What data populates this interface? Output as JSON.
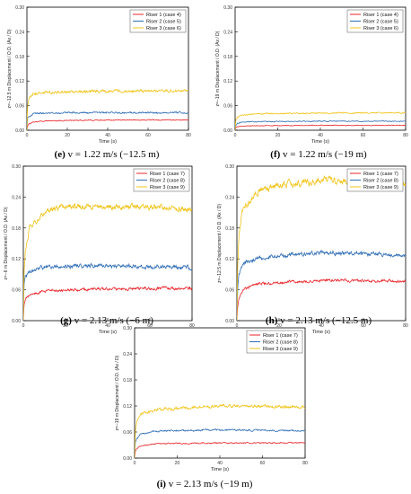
{
  "colors": {
    "riser1": "#e8252a",
    "riser2": "#2f6db5",
    "riser3": "#f0c419",
    "axis": "#000000"
  },
  "panels": [
    {
      "id": "e",
      "caption_letter": "(e)",
      "caption_rest": " v = 1.22 m/s (−12.5 m)",
      "chart_data": {
        "type": "line",
        "xlabel": "Time (s)",
        "ylabel": "z=−12.5 m Displacement / O.D. (Ax / D)",
        "xlim": [
          0,
          80
        ],
        "ylim": [
          0,
          0.3
        ],
        "xticks": [
          "0",
          "20",
          "40",
          "60",
          "80"
        ],
        "yticks": [
          "0.00",
          "0.06",
          "0.12",
          "0.18",
          "0.24",
          "0.30"
        ],
        "legend_position": "top-right",
        "series": [
          {
            "name": "Riser 1 (case 4)",
            "color_key": "riser1",
            "steady": 0.025,
            "noise": 0.0008,
            "x": [
              0,
              0.3,
              1,
              3,
              10,
              40,
              80
            ],
            "y": [
              0,
              0.01,
              0.015,
              0.02,
              0.023,
              0.025,
              0.025
            ]
          },
          {
            "name": "Riser 2 (case 5)",
            "color_key": "riser2",
            "steady": 0.043,
            "noise": 0.0015,
            "x": [
              0,
              0.3,
              1,
              3,
              10,
              40,
              80
            ],
            "y": [
              0,
              0.03,
              0.034,
              0.04,
              0.042,
              0.043,
              0.043
            ]
          },
          {
            "name": "Riser 3 (case 6)",
            "color_key": "riser3",
            "steady": 0.095,
            "noise": 0.0025,
            "x": [
              0,
              0.3,
              1,
              3,
              10,
              40,
              80
            ],
            "y": [
              0,
              0.06,
              0.075,
              0.088,
              0.092,
              0.095,
              0.097
            ]
          }
        ]
      }
    },
    {
      "id": "f",
      "caption_letter": "(f)",
      "caption_rest": " v = 1.22 m/s (−19 m)",
      "chart_data": {
        "type": "line",
        "xlabel": "Time (s)",
        "ylabel": "z=−19 m Displacement / O.D. (Ax / D)",
        "xlim": [
          0,
          80
        ],
        "ylim": [
          0,
          0.3
        ],
        "xticks": [
          "0",
          "20",
          "40",
          "60",
          "80"
        ],
        "yticks": [
          "0.00",
          "0.06",
          "0.12",
          "0.18",
          "0.24",
          "0.30"
        ],
        "legend_position": "top-right",
        "series": [
          {
            "name": "Riser 1 (case 4)",
            "color_key": "riser1",
            "steady": 0.012,
            "noise": 0.0006,
            "x": [
              0,
              0.3,
              1,
              3,
              10,
              40,
              80
            ],
            "y": [
              0,
              0.006,
              0.008,
              0.01,
              0.011,
              0.012,
              0.012
            ]
          },
          {
            "name": "Riser 2 (case 5)",
            "color_key": "riser2",
            "steady": 0.022,
            "noise": 0.0008,
            "x": [
              0,
              0.3,
              1,
              3,
              10,
              40,
              80
            ],
            "y": [
              0,
              0.012,
              0.016,
              0.02,
              0.021,
              0.022,
              0.022
            ]
          },
          {
            "name": "Riser 3 (case 6)",
            "color_key": "riser3",
            "steady": 0.042,
            "noise": 0.0012,
            "x": [
              0,
              0.3,
              1,
              3,
              10,
              40,
              80
            ],
            "y": [
              0,
              0.025,
              0.032,
              0.037,
              0.04,
              0.042,
              0.043
            ]
          }
        ]
      }
    },
    {
      "id": "g",
      "caption_letter": "(g)",
      "caption_rest": " v = 2.13 m/s (−6 m)",
      "chart_data": {
        "type": "line",
        "xlabel": "Time (s)",
        "ylabel": "z=−6 m Displacement / O.D. (Ax / D)",
        "xlim": [
          0,
          80
        ],
        "ylim": [
          0,
          0.3
        ],
        "xticks": [
          "0",
          "20",
          "40",
          "60",
          "80"
        ],
        "yticks": [
          "0.00",
          "0.06",
          "0.12",
          "0.18",
          "0.24",
          "0.30"
        ],
        "legend_position": "top-right",
        "series": [
          {
            "name": "Riser 1 (case 7)",
            "color_key": "riser1",
            "steady": 0.062,
            "noise": 0.002,
            "x": [
              0,
              0.3,
              1,
              3,
              10,
              40,
              80
            ],
            "y": [
              0,
              0.03,
              0.04,
              0.05,
              0.058,
              0.062,
              0.063
            ]
          },
          {
            "name": "Riser 2 (case 8)",
            "color_key": "riser2",
            "steady": 0.105,
            "noise": 0.003,
            "x": [
              0,
              0.3,
              1,
              3,
              10,
              40,
              80
            ],
            "y": [
              0,
              0.07,
              0.085,
              0.095,
              0.105,
              0.107,
              0.103
            ]
          },
          {
            "name": "Riser 3 (case 9)",
            "color_key": "riser3",
            "steady": 0.22,
            "noise": 0.004,
            "x": [
              0,
              0.3,
              1,
              3,
              10,
              20,
              40,
              60,
              80
            ],
            "y": [
              0,
              0.09,
              0.14,
              0.18,
              0.21,
              0.222,
              0.222,
              0.22,
              0.217
            ]
          }
        ]
      }
    },
    {
      "id": "h",
      "caption_letter": "(h)",
      "caption_rest": " v = 2.13 m/s (−12.5 m)",
      "chart_data": {
        "type": "line",
        "xlabel": "Time (s)",
        "ylabel": "z=−12.5 m Displacement / O.D. (Ax / D)",
        "xlim": [
          0,
          80
        ],
        "ylim": [
          0,
          0.3
        ],
        "xticks": [
          "0",
          "20",
          "40",
          "60",
          "80"
        ],
        "yticks": [
          "0.00",
          "0.06",
          "0.12",
          "0.18",
          "0.24",
          "0.30"
        ],
        "legend_position": "top-right",
        "series": [
          {
            "name": "Riser 1 (case 7)",
            "color_key": "riser1",
            "steady": 0.077,
            "noise": 0.002,
            "x": [
              0,
              0.3,
              1,
              3,
              10,
              40,
              80
            ],
            "y": [
              0,
              0.025,
              0.045,
              0.06,
              0.072,
              0.078,
              0.077
            ]
          },
          {
            "name": "Riser 2 (case 8)",
            "color_key": "riser2",
            "steady": 0.128,
            "noise": 0.003,
            "x": [
              0,
              0.3,
              1,
              3,
              10,
              40,
              80
            ],
            "y": [
              0,
              0.06,
              0.09,
              0.11,
              0.122,
              0.132,
              0.127
            ]
          },
          {
            "name": "Riser 3 (case 9)",
            "color_key": "riser3",
            "steady": 0.27,
            "noise": 0.005,
            "x": [
              0,
              0.3,
              1,
              3,
              10,
              20,
              40,
              60,
              80
            ],
            "y": [
              0,
              0.1,
              0.17,
              0.22,
              0.25,
              0.265,
              0.272,
              0.27,
              0.265
            ]
          }
        ]
      }
    },
    {
      "id": "i",
      "caption_letter": "(i)",
      "caption_rest": " v = 2.13 m/s (−19 m)",
      "chart_data": {
        "type": "line",
        "xlabel": "Time (s)",
        "ylabel": "z=−19 m Displacement / O.D. (Ax / D)",
        "xlim": [
          0,
          80
        ],
        "ylim": [
          0,
          0.3
        ],
        "xticks": [
          "0",
          "20",
          "40",
          "60",
          "80"
        ],
        "yticks": [
          "0.00",
          "0.06",
          "0.12",
          "0.18",
          "0.24",
          "0.30"
        ],
        "legend_position": "top-right",
        "series": [
          {
            "name": "Riser 1 (case 7)",
            "color_key": "riser1",
            "steady": 0.035,
            "noise": 0.001,
            "x": [
              0,
              0.3,
              1,
              3,
              10,
              40,
              80
            ],
            "y": [
              0,
              0.015,
              0.022,
              0.028,
              0.033,
              0.035,
              0.035
            ]
          },
          {
            "name": "Riser 2 (case 8)",
            "color_key": "riser2",
            "steady": 0.064,
            "noise": 0.0015,
            "x": [
              0,
              0.3,
              1,
              3,
              10,
              40,
              80
            ],
            "y": [
              0,
              0.035,
              0.045,
              0.055,
              0.062,
              0.065,
              0.063
            ]
          },
          {
            "name": "Riser 3 (case 9)",
            "color_key": "riser3",
            "steady": 0.118,
            "noise": 0.0025,
            "x": [
              0,
              0.3,
              1,
              3,
              10,
              40,
              80
            ],
            "y": [
              0,
              0.06,
              0.085,
              0.1,
              0.112,
              0.12,
              0.118
            ]
          }
        ]
      }
    }
  ]
}
